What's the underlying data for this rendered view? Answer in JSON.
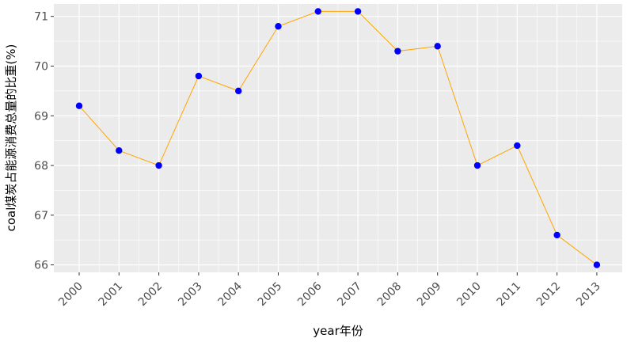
{
  "chart_data": {
    "type": "line",
    "title": "",
    "xlabel": "year年份",
    "ylabel": "coal煤炭占能源消费总量的比重(%)",
    "x": [
      "2000",
      "2001",
      "2002",
      "2003",
      "2004",
      "2005",
      "2006",
      "2007",
      "2008",
      "2009",
      "2010",
      "2011",
      "2012",
      "2013"
    ],
    "series": [
      {
        "values": [
          69.2,
          68.3,
          68.0,
          69.8,
          69.5,
          70.8,
          71.1,
          71.1,
          70.3,
          70.4,
          68.0,
          68.4,
          66.6,
          66.0
        ]
      }
    ],
    "ylim": [
      65.85,
      71.25
    ],
    "yticks": [
      "66",
      "67",
      "68",
      "69",
      "70",
      "71"
    ],
    "grid": true,
    "line_color": "#FFA500",
    "point_color": "#0000FF",
    "panel_color": "#EBEBEB",
    "grid_color": "#FFFFFF"
  }
}
